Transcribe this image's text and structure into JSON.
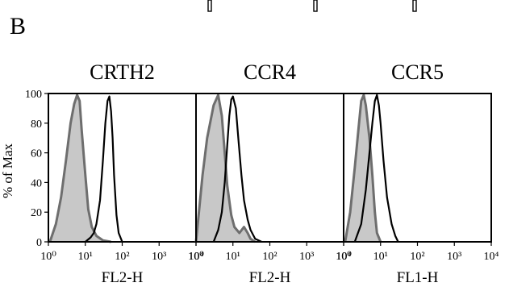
{
  "figure": {
    "panel_letter": "B"
  },
  "chart_data": [
    {
      "type": "area",
      "title": "CRTH2",
      "xlabel": "FL2-H",
      "ylabel": "% of Max",
      "x_scale": "log",
      "xlim": [
        1,
        10000
      ],
      "ylim": [
        0,
        100
      ],
      "x_ticks": [
        "10⁰",
        "10¹",
        "10²",
        "10³",
        "10⁴"
      ],
      "y_ticks": [
        "0",
        "20",
        "40",
        "60",
        "80",
        "100"
      ],
      "series": [
        {
          "x": [
            1.1,
            1.6,
            2.2,
            3,
            4,
            5,
            6,
            7,
            8,
            10,
            12,
            15,
            20,
            30,
            50
          ],
          "y": [
            0,
            12,
            30,
            55,
            80,
            93,
            99,
            95,
            75,
            45,
            22,
            10,
            4,
            1,
            0
          ]
        },
        {
          "x": [
            10,
            14,
            17,
            20,
            25,
            30,
            35,
            40,
            45,
            50,
            55,
            60,
            70,
            80,
            100
          ],
          "y": [
            0,
            3,
            6,
            12,
            28,
            55,
            80,
            95,
            98,
            88,
            70,
            45,
            18,
            6,
            0
          ]
        }
      ]
    },
    {
      "type": "area",
      "title": "CCR4",
      "xlabel": "FL2-H",
      "ylabel": "",
      "x_scale": "log",
      "xlim": [
        1,
        10000
      ],
      "ylim": [
        0,
        100
      ],
      "x_ticks": [
        "10⁰",
        "10¹",
        "10²",
        "10³",
        "10⁴"
      ],
      "y_ticks": [],
      "series": [
        {
          "x": [
            1,
            1.5,
            2,
            3,
            4,
            5,
            6,
            7,
            9,
            11,
            15,
            20,
            25,
            30,
            40
          ],
          "y": [
            0,
            45,
            70,
            92,
            99,
            85,
            60,
            38,
            18,
            10,
            6,
            10,
            6,
            2,
            0
          ]
        },
        {
          "x": [
            3,
            4,
            5,
            6,
            7,
            8,
            9,
            10,
            12,
            14,
            17,
            20,
            25,
            30,
            40,
            60
          ],
          "y": [
            0,
            8,
            20,
            40,
            65,
            85,
            96,
            98,
            90,
            70,
            45,
            28,
            15,
            8,
            2,
            0
          ]
        }
      ]
    },
    {
      "type": "area",
      "title": "CCR5",
      "xlabel": "FL1-H",
      "ylabel": "",
      "x_scale": "log",
      "xlim": [
        1,
        10000
      ],
      "ylim": [
        0,
        100
      ],
      "x_ticks": [
        "10⁰",
        "10¹",
        "10²",
        "10³",
        "10⁴"
      ],
      "y_ticks": [],
      "series": [
        {
          "x": [
            1.1,
            1.5,
            2,
            2.5,
            3,
            3.5,
            4,
            5,
            6,
            7,
            8,
            10
          ],
          "y": [
            0,
            20,
            50,
            75,
            95,
            99,
            92,
            70,
            45,
            20,
            6,
            0
          ]
        },
        {
          "x": [
            2,
            3,
            4,
            5,
            6,
            7,
            8,
            9,
            10,
            12,
            15,
            20,
            25,
            30
          ],
          "y": [
            0,
            12,
            35,
            60,
            80,
            95,
            99,
            92,
            80,
            55,
            30,
            12,
            4,
            0
          ]
        }
      ]
    }
  ]
}
